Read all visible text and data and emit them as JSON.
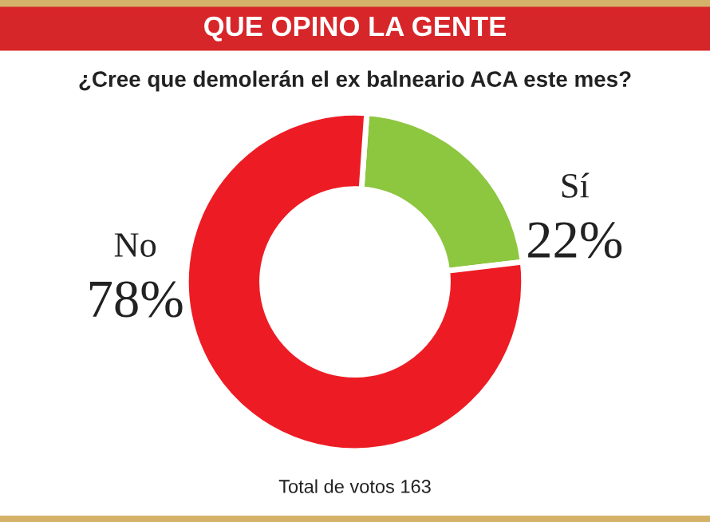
{
  "chart_data": {
    "type": "donut",
    "title": "QUE OPINO LA GENTE",
    "subtitle": "¿Cree que demolerán el ex balneario ACA este mes?",
    "categories": [
      "Sí",
      "No"
    ],
    "values": [
      22,
      78
    ],
    "colors": [
      "#8dc63f",
      "#ed1c24"
    ],
    "value_labels": [
      "22%",
      "78%"
    ],
    "annotations": [
      "Total de votos 163"
    ]
  }
}
